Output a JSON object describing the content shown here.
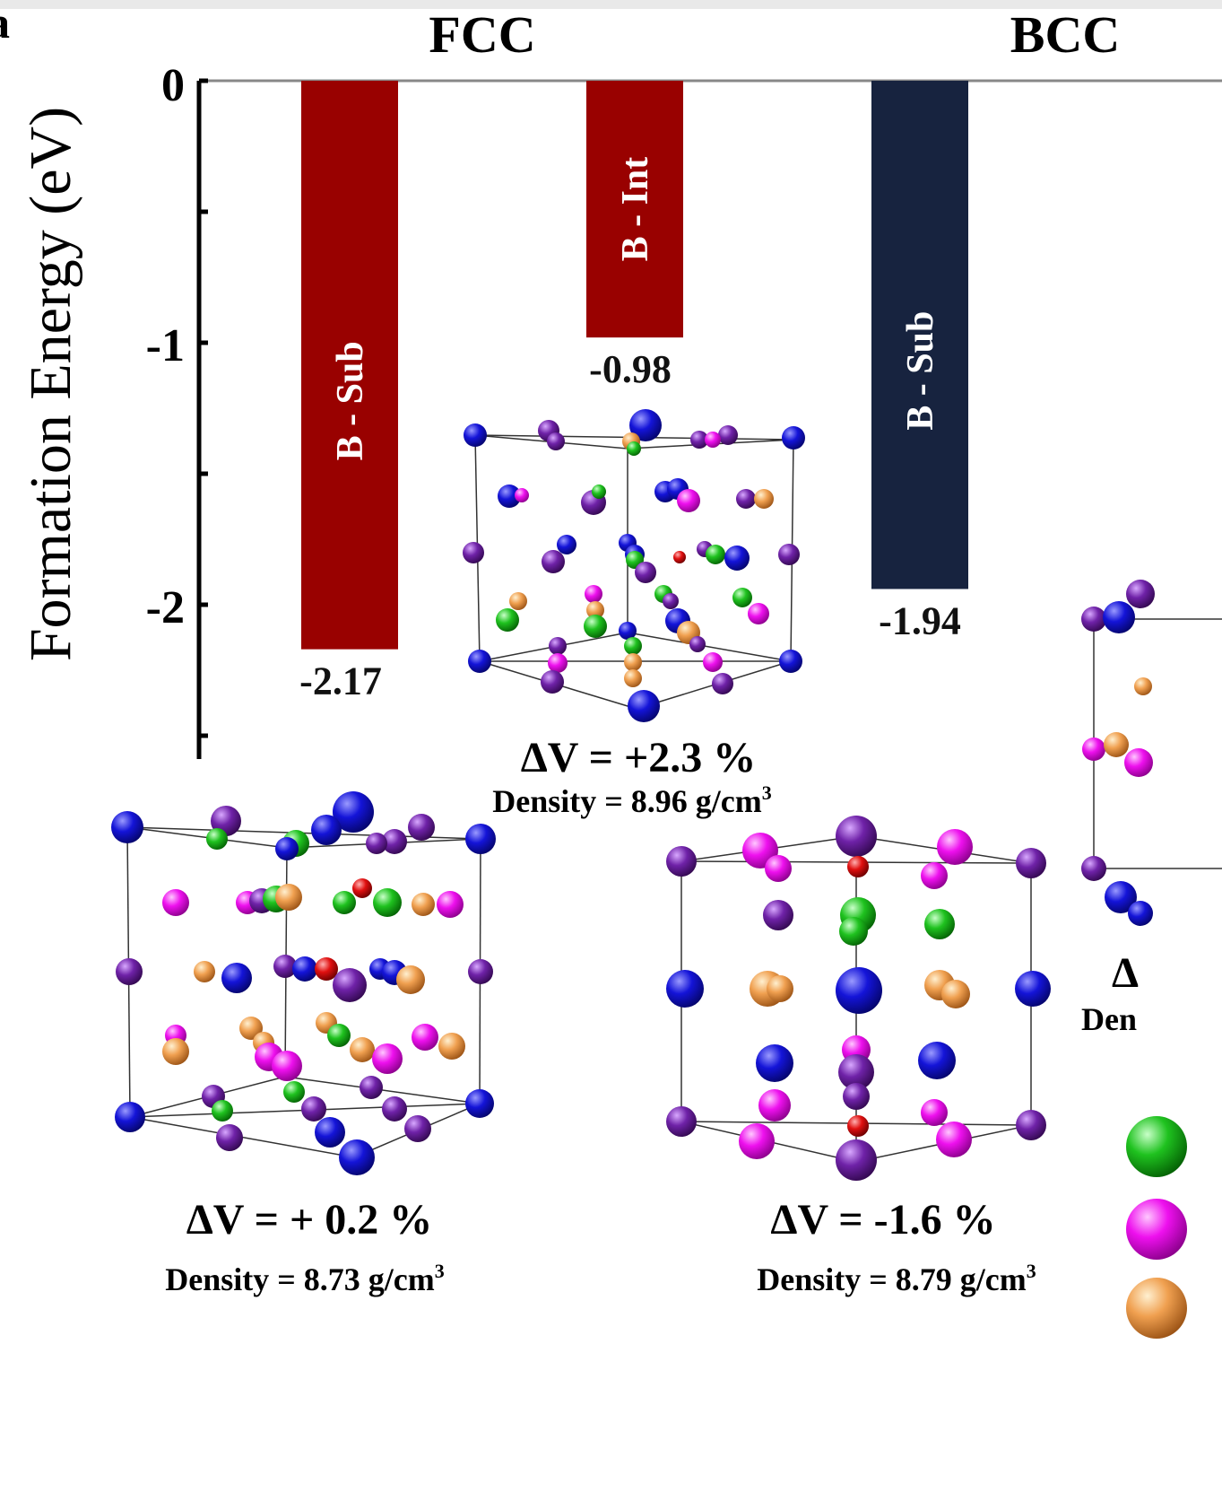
{
  "chart_data": {
    "type": "bar",
    "panel_label": "a",
    "ylabel": "Formation Energy (eV)",
    "ylim": [
      -2.5,
      0
    ],
    "yticks": [
      0,
      -1,
      -2
    ],
    "groups": [
      {
        "label": "FCC",
        "categories": [
          "B - Sub",
          "B - Int"
        ]
      },
      {
        "label": "BCC",
        "categories": [
          "B - Sub"
        ]
      }
    ],
    "series": [
      {
        "category": "B - Sub",
        "group": "FCC",
        "value": -2.17,
        "value_label": "-2.17",
        "color": "#990100"
      },
      {
        "category": "B - Int",
        "group": "FCC",
        "value": -0.98,
        "value_label": "-0.98",
        "color": "#990100"
      },
      {
        "category": "B - Sub",
        "group": "BCC",
        "value": -1.94,
        "value_label": "-1.94",
        "color": "#17233f"
      }
    ],
    "annotations": [
      {
        "delta_v": "ΔV = +2.3 %",
        "density": "Density = 8.96 g/cm",
        "density_sup": "3"
      },
      {
        "delta_v": "ΔV = + 0.2 %",
        "density": "Density = 8.73 g/cm",
        "density_sup": "3"
      },
      {
        "delta_v": "ΔV = -1.6 %",
        "density": "Density = 8.79 g/cm",
        "density_sup": "3"
      },
      {
        "delta_v": "Δ",
        "density": "Den"
      }
    ]
  },
  "colors": {
    "fcc_bar": "#990100",
    "bcc_bar": "#17233f",
    "atom_blue": "#1414d8",
    "atom_purple": "#6f22a8",
    "atom_magenta": "#ee10ee",
    "atom_green": "#1fc21f",
    "atom_orange": "#f0a050",
    "atom_red": "#e01010"
  }
}
